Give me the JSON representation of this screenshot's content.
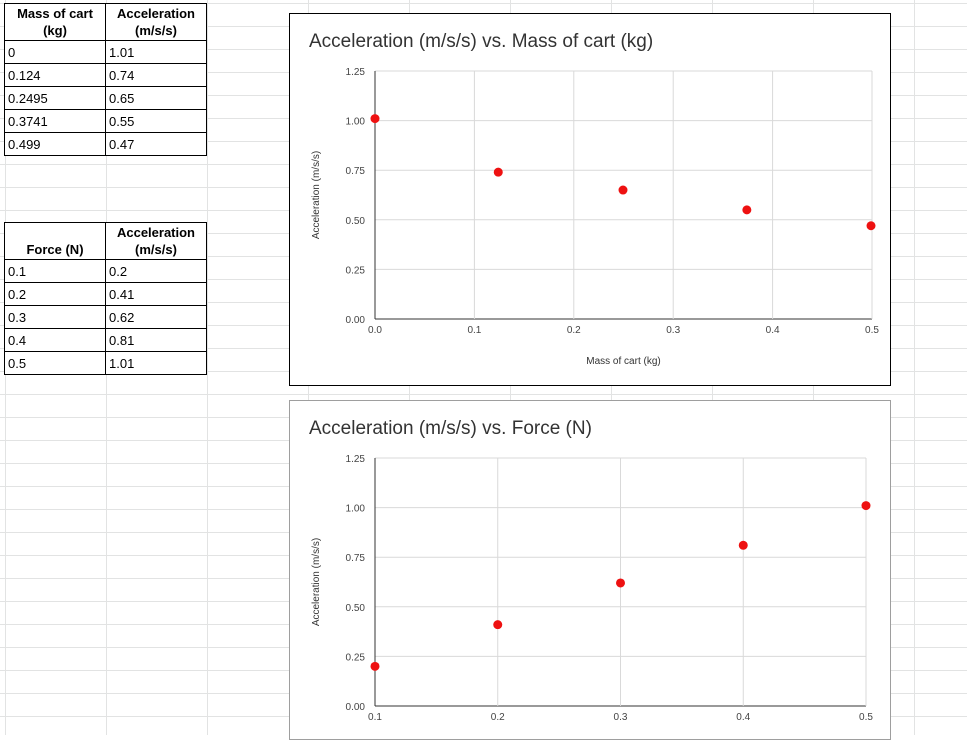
{
  "table_mass": {
    "headers": [
      "Mass of cart (kg)",
      "Acceleration (m/s/s)"
    ],
    "rows": [
      [
        "0",
        "1.01"
      ],
      [
        "0.124",
        "0.74"
      ],
      [
        "0.2495",
        "0.65"
      ],
      [
        "0.3741",
        "0.55"
      ],
      [
        "0.499",
        "0.47"
      ]
    ]
  },
  "table_force": {
    "headers": [
      "Force (N)",
      "Acceleration (m/s/s)"
    ],
    "rows": [
      [
        "0.1",
        "0.2"
      ],
      [
        "0.2",
        "0.41"
      ],
      [
        "0.3",
        "0.62"
      ],
      [
        "0.4",
        "0.81"
      ],
      [
        "0.5",
        "1.01"
      ]
    ]
  },
  "colors": {
    "point": "#ee1111",
    "grid": "#d9d9d9",
    "axis": "#333333"
  },
  "chart_data": [
    {
      "type": "scatter",
      "title": "Acceleration (m/s/s) vs. Mass of cart (kg)",
      "xlabel": "Mass of cart (kg)",
      "ylabel": "Acceleration (m/s/s)",
      "xlim": [
        0,
        0.5
      ],
      "ylim": [
        0,
        1.25
      ],
      "xticks": [
        "0.0",
        "0.1",
        "0.2",
        "0.3",
        "0.4",
        "0.5"
      ],
      "xtick_values": [
        0,
        0.1,
        0.2,
        0.3,
        0.4,
        0.5
      ],
      "yticks": [
        "0.00",
        "0.25",
        "0.50",
        "0.75",
        "1.00",
        "1.25"
      ],
      "ytick_values": [
        0,
        0.25,
        0.5,
        0.75,
        1.0,
        1.25
      ],
      "x": [
        0,
        0.124,
        0.2495,
        0.3741,
        0.499
      ],
      "y": [
        1.01,
        0.74,
        0.65,
        0.55,
        0.47
      ]
    },
    {
      "type": "scatter",
      "title": "Acceleration (m/s/s) vs. Force (N)",
      "xlabel": "",
      "ylabel": "Acceleration (m/s/s)",
      "xlim": [
        0.1,
        0.5
      ],
      "ylim": [
        0,
        1.25
      ],
      "xticks": [
        "0.1",
        "0.2",
        "0.3",
        "0.4",
        "0.5"
      ],
      "xtick_values": [
        0.1,
        0.2,
        0.3,
        0.4,
        0.5
      ],
      "yticks": [
        "0.00",
        "0.25",
        "0.50",
        "0.75",
        "1.00",
        "1.25"
      ],
      "ytick_values": [
        0,
        0.25,
        0.5,
        0.75,
        1.0,
        1.25
      ],
      "x": [
        0.1,
        0.2,
        0.3,
        0.4,
        0.5
      ],
      "y": [
        0.2,
        0.41,
        0.62,
        0.81,
        1.01
      ]
    }
  ]
}
